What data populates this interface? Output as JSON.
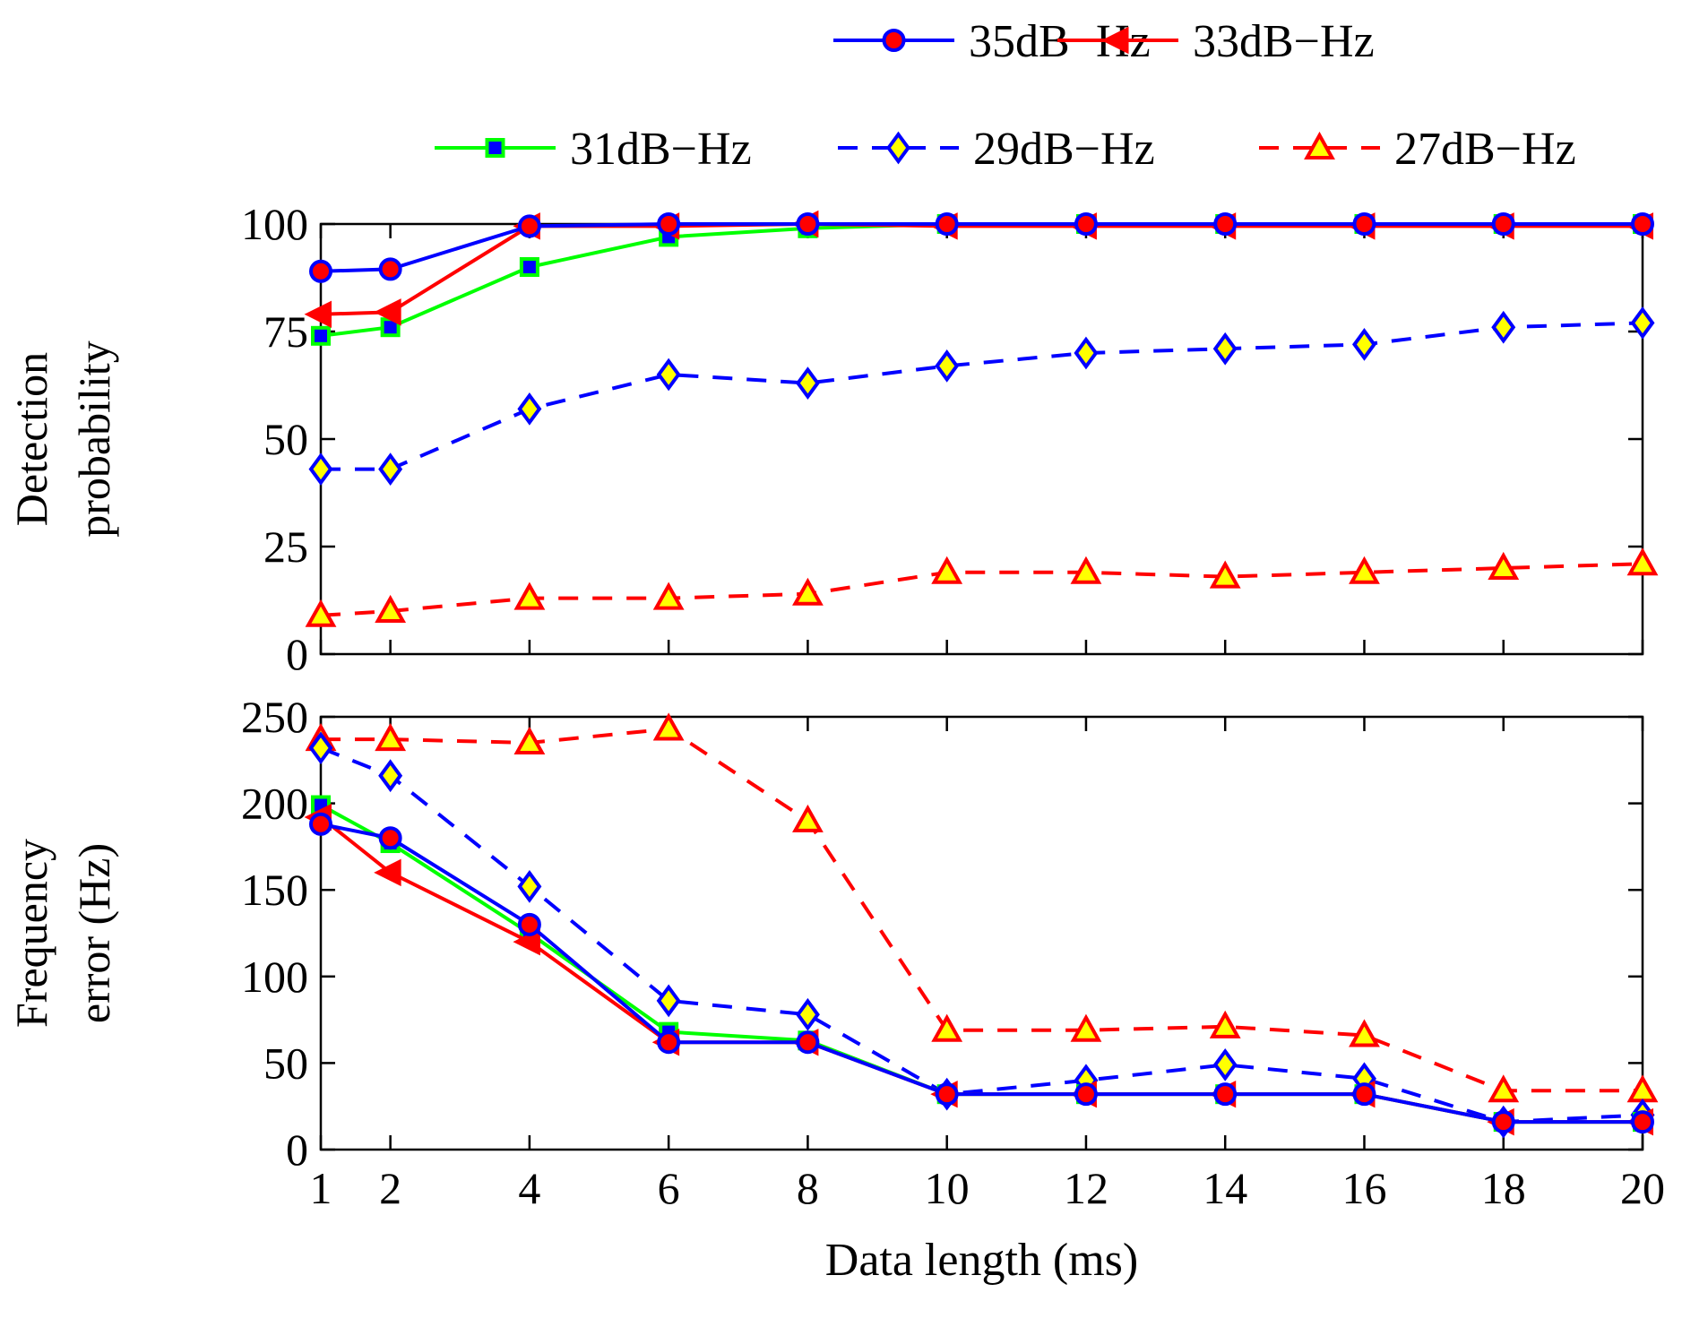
{
  "chart_data": [
    {
      "type": "line",
      "title": "",
      "ylabel_lines": [
        "Detection",
        "probability"
      ],
      "xlabel": "",
      "x": [
        1,
        2,
        4,
        6,
        8,
        10,
        12,
        14,
        16,
        18,
        20
      ],
      "xlim": [
        1,
        20
      ],
      "ylim": [
        0,
        100
      ],
      "yticks": [
        0,
        25,
        50,
        75,
        100
      ],
      "grid": false,
      "series": [
        {
          "name": "35dB−Hz",
          "values": [
            89,
            89.5,
            99.5,
            100,
            100,
            100,
            100,
            100,
            100,
            100,
            100
          ]
        },
        {
          "name": "33dB−Hz",
          "values": [
            79,
            79.5,
            99.5,
            99.5,
            100,
            99.5,
            99.5,
            99.5,
            99.5,
            99.5,
            99.5
          ]
        },
        {
          "name": "31dB−Hz",
          "values": [
            74,
            76,
            90,
            97,
            99,
            100,
            100,
            100,
            100,
            100,
            100
          ]
        },
        {
          "name": "29dB−Hz",
          "values": [
            43,
            43,
            57,
            65,
            63,
            67,
            70,
            71,
            72,
            76,
            77
          ]
        },
        {
          "name": "27dB−Hz",
          "values": [
            9,
            10,
            13,
            13,
            14,
            19,
            19,
            18,
            19,
            20,
            21
          ]
        }
      ]
    },
    {
      "type": "line",
      "title": "",
      "ylabel_lines": [
        "Frequency",
        "error (Hz)"
      ],
      "xlabel": "Data length (ms)",
      "x": [
        1,
        2,
        4,
        6,
        8,
        10,
        12,
        14,
        16,
        18,
        20
      ],
      "xticks": [
        1,
        2,
        4,
        6,
        8,
        10,
        12,
        14,
        16,
        18,
        20
      ],
      "xlim": [
        1,
        20
      ],
      "ylim": [
        0,
        250
      ],
      "yticks": [
        0,
        50,
        100,
        150,
        200,
        250
      ],
      "grid": false,
      "series": [
        {
          "name": "35dB−Hz",
          "values": [
            188,
            180,
            130,
            62,
            62,
            32,
            32,
            32,
            32,
            16,
            16
          ]
        },
        {
          "name": "33dB−Hz",
          "values": [
            192,
            160,
            120,
            62,
            62,
            32,
            32,
            32,
            32,
            16,
            16
          ]
        },
        {
          "name": "31dB−Hz",
          "values": [
            199,
            177,
            125,
            68,
            63,
            32,
            32,
            32,
            32,
            16,
            16
          ]
        },
        {
          "name": "29dB−Hz",
          "values": [
            232,
            216,
            152,
            86,
            78,
            32,
            40,
            49,
            41,
            16,
            20
          ]
        },
        {
          "name": "27dB−Hz",
          "values": [
            237,
            237,
            235,
            243,
            190,
            69,
            69,
            71,
            66,
            34,
            34
          ]
        }
      ]
    }
  ],
  "legend": [
    {
      "label": "35dB−Hz",
      "color": "#0000ff",
      "dash": "solid",
      "marker": "circle",
      "fill": "#ff0000"
    },
    {
      "label": "33dB−Hz",
      "color": "#ff0000",
      "dash": "solid",
      "marker": "triangle-left",
      "fill": "#ff0000"
    },
    {
      "label": "31dB−Hz",
      "color": "#00ff00",
      "dash": "solid",
      "marker": "square",
      "fill": "#0000ff"
    },
    {
      "label": "29dB−Hz",
      "color": "#0000ff",
      "dash": "dashed",
      "marker": "diamond",
      "fill": "#ffff00"
    },
    {
      "label": "27dB−Hz",
      "color": "#ff0000",
      "dash": "dashed",
      "marker": "triangle-up",
      "fill": "#ffff00"
    }
  ]
}
